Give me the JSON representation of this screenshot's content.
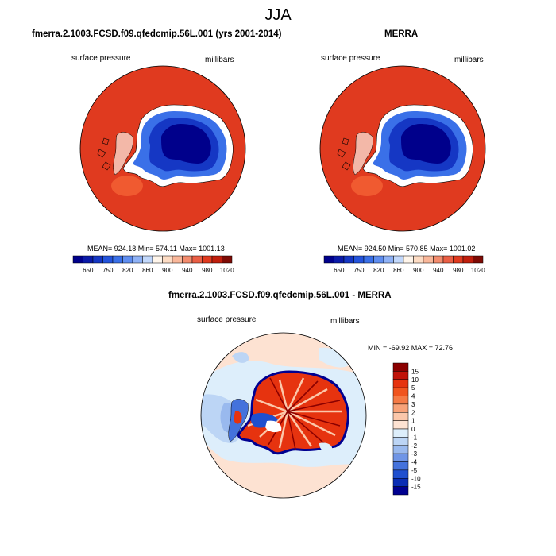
{
  "figure_title": "JJA",
  "panels": [
    {
      "title": "fmerra.2.1003.FCSD.f09.qfedcmip.56L.001 (yrs 2001-2014)",
      "left_label": "surface pressure",
      "right_label": "millibars",
      "stats": "MEAN= 924.18  Min= 574.11  Max= 1001.13"
    },
    {
      "title": "MERRA",
      "left_label": "surface pressure",
      "right_label": "millibars",
      "stats": "MEAN= 924.50  Min= 570.85  Max= 1001.02"
    },
    {
      "title": "fmerra.2.1003.FCSD.f09.qfedcmip.56L.001 - MERRA",
      "left_label": "surface pressure",
      "right_label": "millibars",
      "stats": "MIN = -69.92 MAX =  72.76"
    }
  ],
  "colorbar_pressure": {
    "colors": [
      "#00008b",
      "#0a1aa8",
      "#1537c4",
      "#2454dc",
      "#3a70e8",
      "#5f8ef0",
      "#8fb2f6",
      "#c2d8fb",
      "#fff5ea",
      "#fddcc4",
      "#f9b79a",
      "#f38c6e",
      "#ea5f45",
      "#e03a1f",
      "#c01e0c",
      "#7e0a04"
    ],
    "labels": [
      "650",
      "750",
      "820",
      "860",
      "900",
      "940",
      "980",
      "1020"
    ]
  },
  "colorbar_diff": {
    "colors": [
      "#8b0000",
      "#c01208",
      "#e6330f",
      "#f0541e",
      "#f57a45",
      "#f8a278",
      "#fbc7aa",
      "#fde2d2",
      "#ddeefb",
      "#bcd5f5",
      "#99b9ee",
      "#6f95e6",
      "#4472dc",
      "#1f4fcf",
      "#0a2db5",
      "#000090"
    ],
    "labels": [
      "15",
      "10",
      "5",
      "4",
      "3",
      "2",
      "1",
      "0",
      "-1",
      "-2",
      "-3",
      "-4",
      "-5",
      "-10",
      "-15"
    ]
  }
}
